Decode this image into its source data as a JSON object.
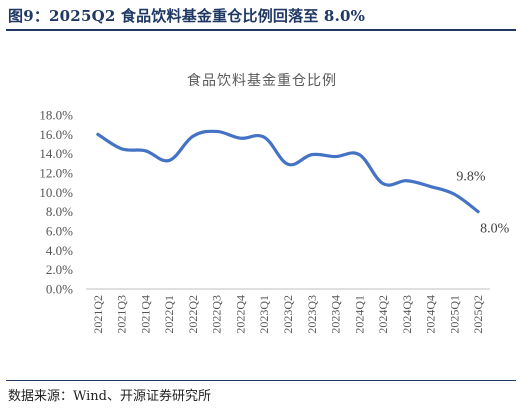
{
  "figure": {
    "title": "图9：2025Q2 食品饮料基金重仓比例回落至 8.0%",
    "source": "数据来源：Wind、开源证券研究所"
  },
  "chart_data": {
    "type": "line",
    "title": "食品饮料基金重仓比例",
    "categories": [
      "2021Q2",
      "2021Q3",
      "2021Q4",
      "2022Q1",
      "2022Q2",
      "2022Q3",
      "2022Q4",
      "2023Q1",
      "2023Q2",
      "2023Q3",
      "2023Q4",
      "2024Q1",
      "2024Q2",
      "2024Q3",
      "2024Q4",
      "2025Q1",
      "2025Q2"
    ],
    "series": [
      {
        "values": [
          16.0,
          14.5,
          14.3,
          13.3,
          15.8,
          16.3,
          15.6,
          15.7,
          12.9,
          13.9,
          13.7,
          13.9,
          10.9,
          11.2,
          10.6,
          9.8,
          8.0
        ]
      }
    ],
    "ylim": [
      0,
      18
    ],
    "yticks": [
      "0.0%",
      "2.0%",
      "4.0%",
      "6.0%",
      "8.0%",
      "10.0%",
      "12.0%",
      "14.0%",
      "16.0%",
      "18.0%"
    ],
    "data_labels": [
      {
        "index": 15,
        "text": "9.8%"
      },
      {
        "index": 16,
        "text": "8.0%"
      }
    ],
    "line_color": "#4472c4",
    "grid": false,
    "legend": "none"
  }
}
